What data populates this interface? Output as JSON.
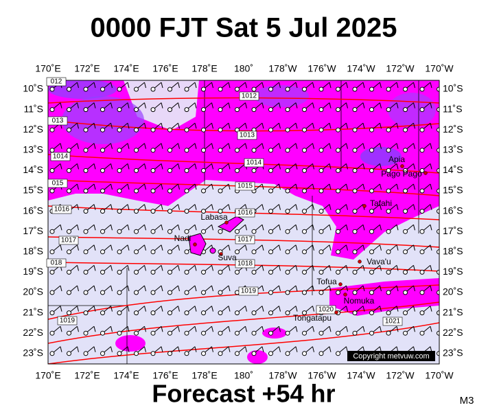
{
  "header": {
    "title": "0000 FJT Sat 5 Jul 2025"
  },
  "footer": {
    "forecast": "Forecast +54 hr",
    "model": "M3",
    "copyright": "Copyright metvuw.com"
  },
  "map": {
    "lon_labels": [
      "170˚E",
      "172˚E",
      "174˚E",
      "176˚E",
      "178˚E",
      "180˚",
      "178˚W",
      "176˚W",
      "174˚W",
      "172˚W",
      "170˚W"
    ],
    "lat_labels": [
      "10˚S",
      "11˚S",
      "12˚S",
      "13˚S",
      "14˚S",
      "15˚S",
      "16˚S",
      "17˚S",
      "18˚S",
      "19˚S",
      "20˚S",
      "21˚S",
      "22˚S",
      "23˚S"
    ],
    "isobar_labels": [
      "1012",
      "1013",
      "1014",
      "1015",
      "1016",
      "1017",
      "1018",
      "1019",
      "1020",
      "1021",
      "012",
      "013",
      "1014",
      "015",
      "1016",
      "1017",
      "018",
      "1019"
    ],
    "places": [
      "Apia",
      "Pago Pago",
      "Tafahi",
      "Labasa",
      "Nadi",
      "Suva",
      "Vava'u",
      "Tofua",
      "Nomuka",
      "Tongatapu"
    ]
  }
}
